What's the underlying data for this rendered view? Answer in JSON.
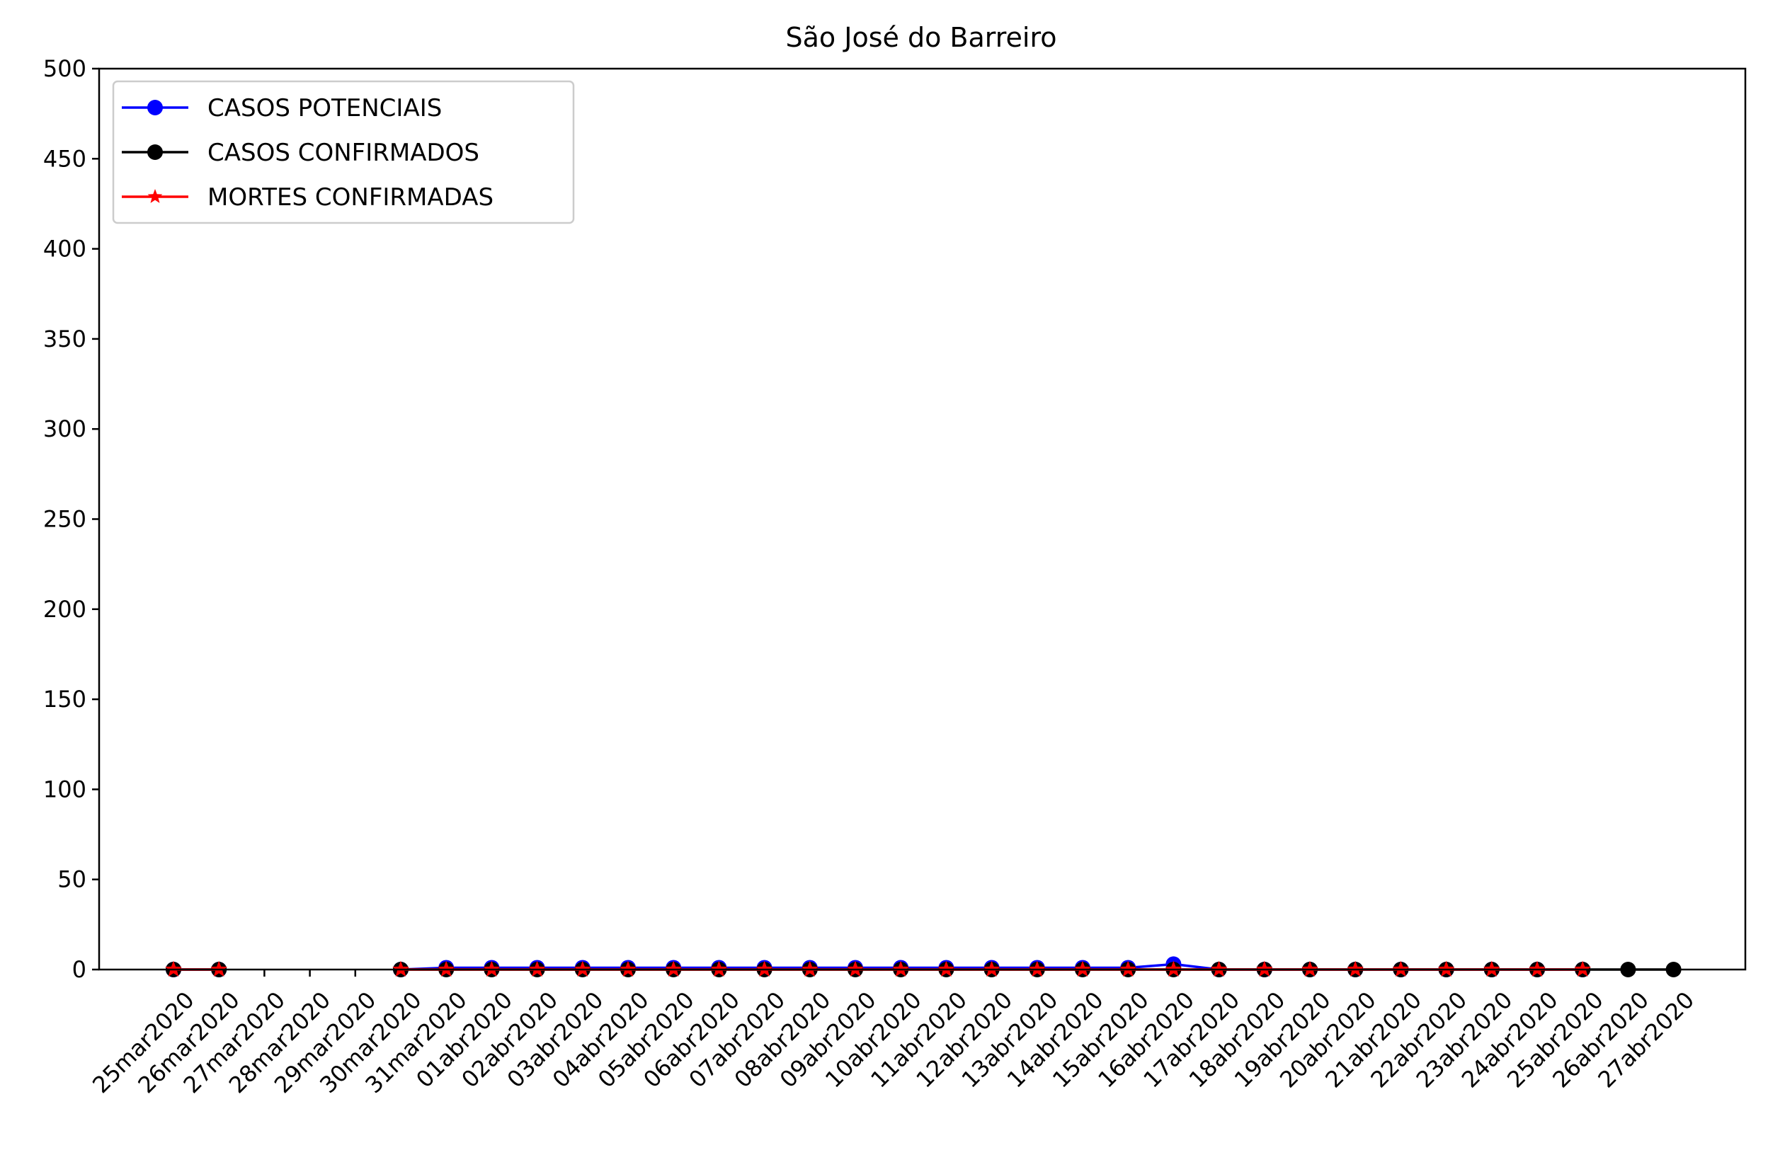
{
  "chart_data": {
    "type": "line",
    "title": "São José do Barreiro",
    "xlabel": "",
    "ylabel": "",
    "ylim": [
      0,
      500
    ],
    "yticks": [
      "0",
      "50",
      "100",
      "150",
      "200",
      "250",
      "300",
      "350",
      "400",
      "450",
      "500"
    ],
    "grid": false,
    "legend_position": "top-left",
    "categories": [
      "25mar2020",
      "26mar2020",
      "27mar2020",
      "28mar2020",
      "29mar2020",
      "30mar2020",
      "31mar2020",
      "01abr2020",
      "02abr2020",
      "03abr2020",
      "04abr2020",
      "05abr2020",
      "06abr2020",
      "07abr2020",
      "08abr2020",
      "09abr2020",
      "10abr2020",
      "11abr2020",
      "12abr2020",
      "13abr2020",
      "14abr2020",
      "15abr2020",
      "16abr2020",
      "17abr2020",
      "18abr2020",
      "19abr2020",
      "20abr2020",
      "21abr2020",
      "22abr2020",
      "23abr2020",
      "24abr2020",
      "25abr2020",
      "26abr2020",
      "27abr2020"
    ],
    "series": [
      {
        "name": "CASOS POTENCIAIS",
        "color": "#0000ff",
        "marker": "circle",
        "values": [
          0,
          0,
          null,
          null,
          null,
          0,
          1,
          1,
          1,
          1,
          1,
          1,
          1,
          1,
          1,
          1,
          1,
          1,
          1,
          1,
          1,
          1,
          3,
          0,
          0,
          0,
          0,
          0,
          0,
          0,
          0,
          0,
          null,
          null
        ]
      },
      {
        "name": "CASOS CONFIRMADOS",
        "color": "#000000",
        "marker": "circle",
        "values": [
          0,
          0,
          null,
          null,
          null,
          0,
          0,
          0,
          0,
          0,
          0,
          0,
          0,
          0,
          0,
          0,
          0,
          0,
          0,
          0,
          0,
          0,
          0,
          0,
          0,
          0,
          0,
          0,
          0,
          0,
          0,
          0,
          0,
          0
        ]
      },
      {
        "name": "MORTES CONFIRMADAS",
        "color": "#ff0000",
        "marker": "star",
        "values": [
          0,
          0,
          null,
          null,
          null,
          0,
          0,
          0,
          0,
          0,
          0,
          0,
          0,
          0,
          0,
          0,
          0,
          0,
          0,
          0,
          0,
          0,
          0,
          0,
          0,
          0,
          0,
          0,
          0,
          0,
          0,
          0,
          null,
          null
        ]
      }
    ]
  }
}
